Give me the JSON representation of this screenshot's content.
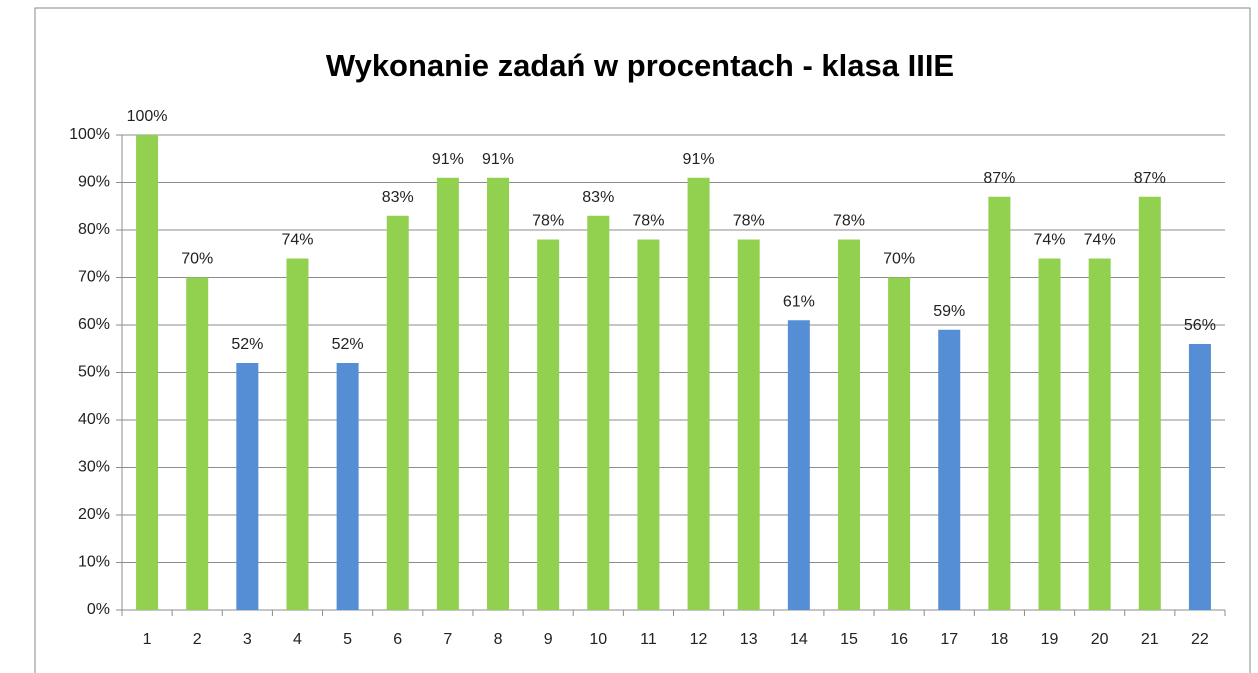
{
  "chart_data": {
    "type": "bar",
    "title": "Wykonanie zadań w procentach - klasa IIIE",
    "categories": [
      "1",
      "2",
      "3",
      "4",
      "5",
      "6",
      "7",
      "8",
      "9",
      "10",
      "11",
      "12",
      "13",
      "14",
      "15",
      "16",
      "17",
      "18",
      "19",
      "20",
      "21",
      "22"
    ],
    "values": [
      100,
      70,
      52,
      74,
      52,
      83,
      91,
      91,
      78,
      83,
      78,
      91,
      78,
      61,
      78,
      70,
      59,
      87,
      74,
      74,
      87,
      56
    ],
    "value_labels": [
      "100%",
      "70%",
      "52%",
      "74%",
      "52%",
      "83%",
      "91%",
      "91%",
      "78%",
      "83%",
      "78%",
      "91%",
      "78%",
      "61%",
      "78%",
      "70%",
      "59%",
      "87%",
      "74%",
      "74%",
      "87%",
      "56%"
    ],
    "colors": [
      "#92d050",
      "#92d050",
      "#558ed5",
      "#92d050",
      "#558ed5",
      "#92d050",
      "#92d050",
      "#92d050",
      "#92d050",
      "#92d050",
      "#92d050",
      "#92d050",
      "#92d050",
      "#558ed5",
      "#92d050",
      "#92d050",
      "#558ed5",
      "#92d050",
      "#92d050",
      "#92d050",
      "#92d050",
      "#558ed5"
    ],
    "ylim": [
      0,
      100
    ],
    "yticks": [
      {
        "value": 0,
        "label": "0%"
      },
      {
        "value": 10,
        "label": "10%"
      },
      {
        "value": 20,
        "label": "20%"
      },
      {
        "value": 30,
        "label": "30%"
      },
      {
        "value": 40,
        "label": "40%"
      },
      {
        "value": 50,
        "label": "50%"
      },
      {
        "value": 60,
        "label": "60%"
      },
      {
        "value": 70,
        "label": "70%"
      },
      {
        "value": 80,
        "label": "80%"
      },
      {
        "value": 90,
        "label": "90%"
      },
      {
        "value": 100,
        "label": "100%"
      }
    ],
    "grid": true
  }
}
